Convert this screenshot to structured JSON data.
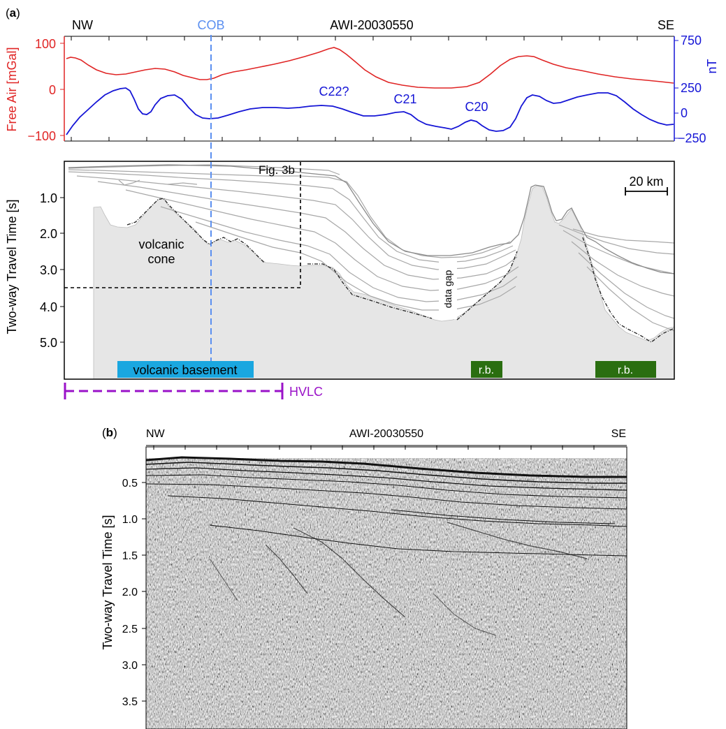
{
  "colors": {
    "gravity": "#e02424",
    "magnetic": "#1515d6",
    "cob": "#5b8ff0",
    "hvlc": "#9a12c8",
    "volcanic_basement": "#1aa7e0",
    "rb": "#2a6e10",
    "basement_fill": "#e6e6e6",
    "reflector": "#a8a8a8"
  },
  "panel_a": {
    "label_open": "(",
    "label_letter": "a",
    "label_close": ")",
    "nw": "NW",
    "se": "SE",
    "profile": "AWI-20030550",
    "cob": "COB",
    "potential_field": {
      "left_axis_label": "Free Air [mGal]",
      "right_axis_label": "nT",
      "left_ticks": [
        "100",
        "0",
        "−100"
      ],
      "left_tick_values": [
        100,
        0,
        -100
      ],
      "right_ticks": [
        "750",
        "250",
        "0",
        "−250"
      ],
      "right_tick_values": [
        750,
        250,
        0,
        -250
      ],
      "anomalies": [
        "C22?",
        "C21",
        "C20"
      ]
    },
    "seismic_section": {
      "y_axis_label": "Two-way Travel Time [s]",
      "y_ticks": [
        "1.0",
        "2.0",
        "3.0",
        "4.0",
        "5.0"
      ],
      "y_tick_values": [
        1.0,
        2.0,
        3.0,
        4.0,
        5.0
      ],
      "fig_ref": "Fig. 3b",
      "scale_bar": "20 km",
      "volcanic_cone_line1": "volcanic",
      "volcanic_cone_line2": "cone",
      "data_gap": "data gap",
      "volcanic_basement": "volcanic basement",
      "rb1": "r.b.",
      "rb2": "r.b.",
      "hvlc": "HVLC"
    }
  },
  "panel_b": {
    "label_open": "(",
    "label_letter": "b",
    "label_close": ")",
    "nw": "NW",
    "se": "SE",
    "profile": "AWI-20030550",
    "y_axis_label": "Two-way Travel Time [s]",
    "y_ticks": [
      "0.5",
      "1.0",
      "1.5",
      "2.0",
      "2.5",
      "3.0",
      "3.5"
    ],
    "y_tick_values": [
      0.5,
      1.0,
      1.5,
      2.0,
      2.5,
      3.0,
      3.5
    ]
  }
}
